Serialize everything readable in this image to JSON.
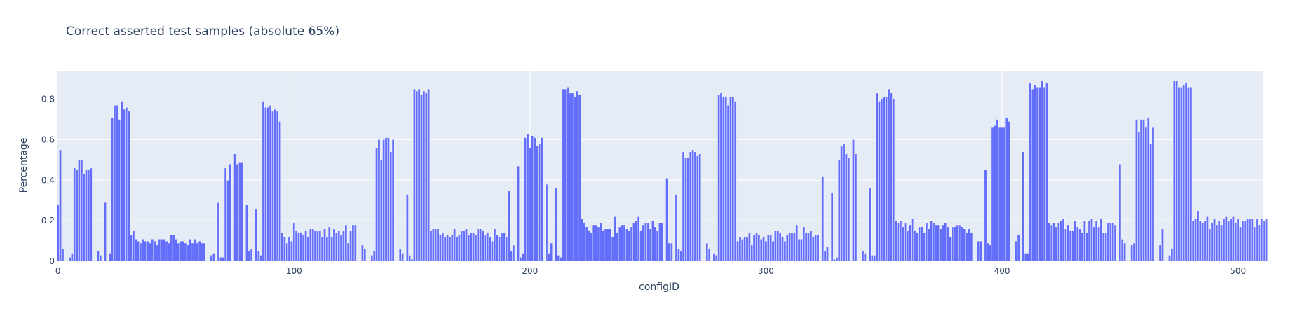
{
  "chart_data": {
    "type": "bar",
    "title": "Correct asserted test samples (absolute 65%)",
    "xlabel": "configID",
    "ylabel": "Percentage",
    "xlim": [
      -0.5,
      510.5
    ],
    "ylim": [
      0,
      0.94
    ],
    "x_ticks": [
      0,
      100,
      200,
      300,
      400,
      500
    ],
    "y_ticks": [
      0,
      0.2,
      0.4,
      0.6,
      0.8
    ],
    "y_tick_labels": [
      "0",
      "0.2",
      "0.4",
      "0.6",
      "0.8"
    ],
    "grid": true,
    "plot_background": "#e5ecf6",
    "bar_color": "#636efa",
    "x_start": 0,
    "values": [
      0.28,
      0.55,
      0.06,
      0,
      0,
      0.02,
      0.04,
      0.46,
      0.45,
      0.5,
      0.5,
      0.43,
      0.45,
      0.45,
      0.46,
      0,
      0,
      0.05,
      0.03,
      0,
      0.29,
      0,
      0.04,
      0.71,
      0.77,
      0.77,
      0.7,
      0.79,
      0.75,
      0.76,
      0.74,
      0.13,
      0.15,
      0.11,
      0.1,
      0.09,
      0.11,
      0.1,
      0.1,
      0.09,
      0.11,
      0.1,
      0.08,
      0.11,
      0.11,
      0.11,
      0.1,
      0.09,
      0.13,
      0.13,
      0.11,
      0.09,
      0.1,
      0.1,
      0.09,
      0.08,
      0.11,
      0.09,
      0.11,
      0.09,
      0.1,
      0.09,
      0.09,
      0,
      0,
      0.03,
      0.04,
      0,
      0.29,
      0.02,
      0.02,
      0.46,
      0.4,
      0.48,
      0,
      0.53,
      0.48,
      0.49,
      0.49,
      0,
      0.28,
      0.05,
      0.06,
      0,
      0.26,
      0.05,
      0.03,
      0.79,
      0.76,
      0.76,
      0.77,
      0.74,
      0.75,
      0.74,
      0.69,
      0.14,
      0.12,
      0.09,
      0.12,
      0.1,
      0.19,
      0.15,
      0.14,
      0.14,
      0.13,
      0.15,
      0.12,
      0.16,
      0.16,
      0.15,
      0.15,
      0.15,
      0.12,
      0.16,
      0.12,
      0.17,
      0.12,
      0.16,
      0.14,
      0.15,
      0.13,
      0.15,
      0.18,
      0.09,
      0.15,
      0.18,
      0.18,
      0,
      0,
      0.08,
      0.06,
      0,
      0,
      0.03,
      0.05,
      0.56,
      0.6,
      0.5,
      0.6,
      0.61,
      0.61,
      0.54,
      0.6,
      0,
      0,
      0.06,
      0.04,
      0,
      0.33,
      0.03,
      0.01,
      0.85,
      0.84,
      0.85,
      0.82,
      0.84,
      0.83,
      0.85,
      0.15,
      0.16,
      0.16,
      0.16,
      0.13,
      0.14,
      0.12,
      0.13,
      0.12,
      0.13,
      0.16,
      0.12,
      0.13,
      0.15,
      0.15,
      0.16,
      0.13,
      0.14,
      0.14,
      0.13,
      0.16,
      0.16,
      0.15,
      0.13,
      0.14,
      0.12,
      0.1,
      0.16,
      0.13,
      0.12,
      0.14,
      0.14,
      0.12,
      0.35,
      0.05,
      0.08,
      0,
      0.47,
      0.02,
      0.04,
      0.61,
      0.63,
      0.56,
      0.62,
      0.61,
      0.57,
      0.58,
      0.61,
      0,
      0.38,
      0.04,
      0.09,
      0,
      0.36,
      0.03,
      0.02,
      0.85,
      0.85,
      0.86,
      0.83,
      0.83,
      0.81,
      0.84,
      0.82,
      0.21,
      0.19,
      0.17,
      0.15,
      0.14,
      0.18,
      0.18,
      0.17,
      0.19,
      0.15,
      0.16,
      0.16,
      0.16,
      0.12,
      0.22,
      0.14,
      0.17,
      0.18,
      0.18,
      0.16,
      0.15,
      0.17,
      0.19,
      0.2,
      0.22,
      0.15,
      0.18,
      0.19,
      0.19,
      0.16,
      0.2,
      0.17,
      0.15,
      0.19,
      0.19,
      0,
      0.41,
      0.09,
      0.09,
      0,
      0.33,
      0.06,
      0.05,
      0.54,
      0.51,
      0.51,
      0.54,
      0.55,
      0.54,
      0.52,
      0.53,
      0,
      0,
      0.09,
      0.06,
      0,
      0.04,
      0.03,
      0.82,
      0.83,
      0.81,
      0.81,
      0.77,
      0.81,
      0.81,
      0.79,
      0.1,
      0.12,
      0.11,
      0.12,
      0.12,
      0.14,
      0.08,
      0.13,
      0.14,
      0.13,
      0.11,
      0.12,
      0.1,
      0.13,
      0.13,
      0.1,
      0.15,
      0.15,
      0.14,
      0.12,
      0.1,
      0.13,
      0.14,
      0.14,
      0.14,
      0.18,
      0.11,
      0.11,
      0.17,
      0.14,
      0.14,
      0.15,
      0.12,
      0.13,
      0.13,
      0,
      0.42,
      0.05,
      0.07,
      0,
      0.34,
      0.01,
      0.02,
      0.5,
      0.57,
      0.58,
      0.53,
      0.51,
      0,
      0.6,
      0.53,
      0,
      0,
      0.05,
      0.04,
      0,
      0.36,
      0.03,
      0.03,
      0.83,
      0.79,
      0.8,
      0.81,
      0.81,
      0.85,
      0.83,
      0.8,
      0.2,
      0.19,
      0.2,
      0.17,
      0.19,
      0.15,
      0.18,
      0.21,
      0.15,
      0.14,
      0.17,
      0.17,
      0.14,
      0.19,
      0.16,
      0.2,
      0.19,
      0.18,
      0.18,
      0.16,
      0.18,
      0.19,
      0.17,
      0.12,
      0.17,
      0.17,
      0.18,
      0.18,
      0.17,
      0.16,
      0.14,
      0.16,
      0.14,
      0,
      0,
      0.1,
      0.1,
      0,
      0.45,
      0.09,
      0.08,
      0.66,
      0.67,
      0.7,
      0.66,
      0.66,
      0.66,
      0.71,
      0.69,
      0,
      0,
      0.1,
      0.13,
      0,
      0.54,
      0.04,
      0.04,
      0.88,
      0.85,
      0.87,
      0.86,
      0.86,
      0.89,
      0.86,
      0.88,
      0.19,
      0.18,
      0.19,
      0.17,
      0.19,
      0.2,
      0.21,
      0.16,
      0.18,
      0.15,
      0.15,
      0.2,
      0.17,
      0.16,
      0.14,
      0.2,
      0.14,
      0.2,
      0.21,
      0.17,
      0.2,
      0.17,
      0.21,
      0.14,
      0.14,
      0.19,
      0.19,
      0.19,
      0.18,
      0,
      0.48,
      0.11,
      0.09,
      0,
      0,
      0.08,
      0.09,
      0.7,
      0.64,
      0.7,
      0.7,
      0.66,
      0.71,
      0.58,
      0.66,
      0,
      0,
      0.08,
      0.16,
      0,
      0,
      0.03,
      0.06,
      0.89,
      0.89,
      0.86,
      0.86,
      0.87,
      0.88,
      0.86,
      0.86,
      0.2,
      0.21,
      0.25,
      0.2,
      0.19,
      0.2,
      0.22,
      0.16,
      0.19,
      0.21,
      0.18,
      0.2,
      0.18,
      0.21,
      0.22,
      0.2,
      0.21,
      0.22,
      0.19,
      0.21,
      0.17,
      0.2,
      0.2,
      0.21,
      0.21,
      0.21,
      0.17,
      0.21,
      0.18,
      0.21,
      0.2,
      0.21
    ]
  }
}
